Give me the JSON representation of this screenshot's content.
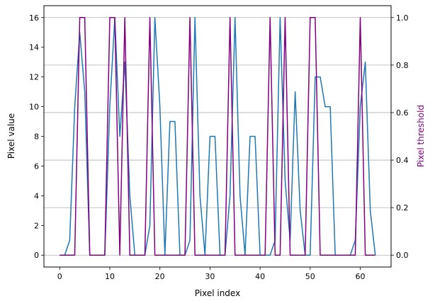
{
  "chart_data": {
    "type": "line",
    "xlabel": "Pixel index",
    "ylabel": "Pixel value",
    "ylabel_right": "Pixel threshold",
    "xlim": [
      -3.15,
      66.15
    ],
    "ylim": [
      -0.8,
      16.8
    ],
    "ylim_right": [
      -0.05,
      1.05
    ],
    "x_ticks": [
      0,
      10,
      20,
      30,
      40,
      50,
      60
    ],
    "y_ticks": [
      0,
      2,
      4,
      6,
      8,
      10,
      12,
      14,
      16
    ],
    "y_ticks_right": [
      0.0,
      0.2,
      0.4,
      0.6,
      0.8,
      1.0
    ],
    "grid": "horizontal lines at right-axis ticks",
    "series": [
      {
        "axis": "left",
        "color": "#1f77b4",
        "values": [
          0,
          0,
          1,
          10,
          15,
          11,
          0,
          0,
          0,
          0,
          10,
          16,
          8,
          13,
          4,
          0,
          0,
          0,
          2,
          16,
          10,
          0,
          9,
          9,
          0,
          0,
          1,
          16,
          4,
          0,
          8,
          8,
          0,
          0,
          4,
          16,
          4,
          0,
          8,
          8,
          0,
          0,
          0,
          1,
          16,
          5,
          1,
          11,
          3,
          0,
          0,
          12,
          12,
          10,
          10,
          0,
          0,
          0,
          0,
          1,
          10,
          13,
          3,
          0
        ]
      },
      {
        "axis": "right",
        "color": "#800080",
        "values": [
          0,
          0,
          0,
          0,
          1,
          1,
          0,
          0,
          0,
          0,
          1,
          1,
          0,
          1,
          0,
          0,
          0,
          0,
          1,
          0,
          0,
          0,
          0,
          0,
          0,
          0,
          1,
          0,
          0,
          0,
          0,
          0,
          0,
          0,
          1,
          0,
          0,
          0,
          0,
          0,
          0,
          0,
          1,
          0,
          0,
          1,
          0,
          0,
          0,
          0,
          1,
          1,
          0,
          0,
          0,
          0,
          0,
          0,
          0,
          0,
          1,
          0,
          0,
          0
        ]
      }
    ]
  }
}
